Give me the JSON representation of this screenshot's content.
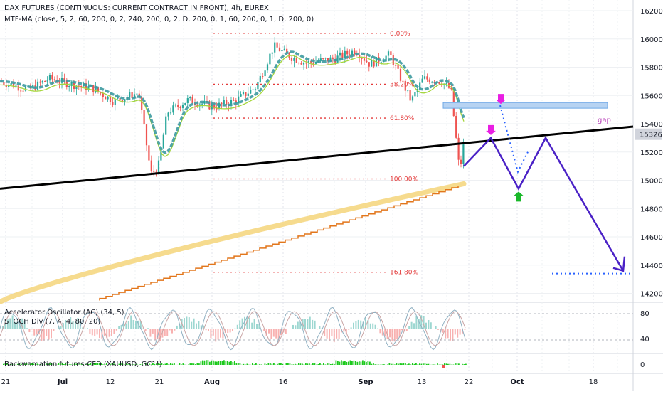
{
  "header": {
    "symbol": "DAX FUTURES (CONTINUOUS: CURRENT CONTRACT IN FRONT), 4h, EUREX",
    "indicator": "MTF-MA (close, 5, 2, 60, 200, 0, 2, 240, 200, 0, 2, D, 200, 0, 1, 60, 200, 0, 1, D, 200, 0)"
  },
  "chart_data": {
    "type": "candlestick",
    "y_axis": {
      "ticks": [
        16200,
        16000,
        15800,
        15600,
        15400,
        15200,
        15000,
        14800,
        14600,
        14400,
        14200
      ],
      "min": 14150,
      "max": 16250,
      "position": "right"
    },
    "last_price_label": "15326",
    "x_axis": {
      "ticks": [
        "21",
        "Jul",
        "12",
        "21",
        "Aug",
        "16",
        "Sep",
        "13",
        "22",
        "Oct",
        "18"
      ]
    },
    "fib_levels": [
      {
        "label": "0.00%",
        "price": 16040
      },
      {
        "label": "38.20%",
        "price": 15680
      },
      {
        "label": "61.80%",
        "price": 15440
      },
      {
        "label": "100.00%",
        "price": 15010
      },
      {
        "label": "161.80%",
        "price": 14350
      }
    ],
    "gap_zone": {
      "label": "gap",
      "from": 15510,
      "to": 15550
    },
    "trendline": {
      "from": {
        "x": "start",
        "price": 14940
      },
      "to": {
        "x": "end",
        "price": 15380
      }
    },
    "projection_path": [
      15100,
      15300,
      14940,
      15300,
      14360
    ],
    "target_line_price": 14340,
    "markers": [
      {
        "type": "sell-arrow",
        "color": "#e91ee3",
        "price": 15320
      },
      {
        "type": "sell-arrow",
        "color": "#e91ee3",
        "price": 15540
      },
      {
        "type": "buy-arrow",
        "color": "#19b829",
        "price": 14920
      }
    ],
    "colors": {
      "candle_up": "#26a69a",
      "candle_down": "#ef5350",
      "ma_teal": "#3d9aa0",
      "ma_orange": "#e2761b",
      "ma_yellow": "#f5d57a",
      "projection": "#4a21c6",
      "trendline": "#000000",
      "fib": "#e33939"
    },
    "sub_panes": [
      {
        "name": "Accelerator Oscillator (AC) (34, 5)",
        "ticks": [
          "80",
          "40"
        ]
      },
      {
        "name": "STOCH Div (7, 4, 4, 80, 20)"
      },
      {
        "name": "Backwardation futures-CFD (XAUUSD, GC1!)",
        "ticks": [
          "0"
        ]
      }
    ]
  }
}
